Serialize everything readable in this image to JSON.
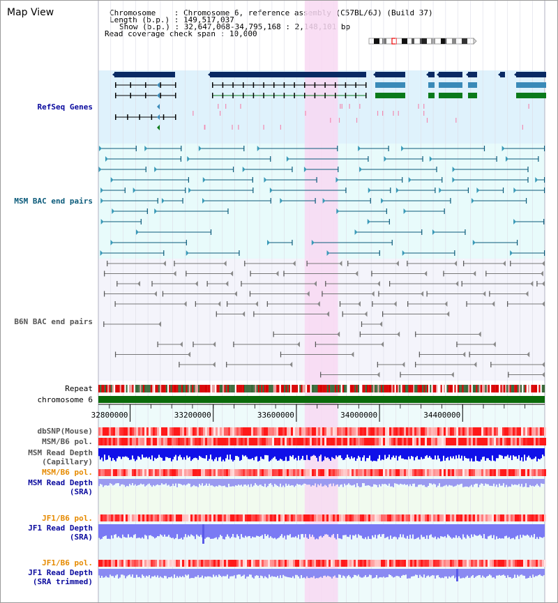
{
  "header": {
    "title": "Map View",
    "chromosome_label": "Chromosome",
    "chromosome_value": "Chromosome 6, reference assembly (C57BL/6J) (Build 37)",
    "length_label": "Length (b.p.)",
    "length_value": "149,517,037",
    "show_label": "Show (b.p.)",
    "show_value": "32,647,068-34,795,168 : 2,148,101 bp",
    "coverage_label": "Read coverage check span",
    "coverage_value": "10,000"
  },
  "view": {
    "start_bp": 32647068,
    "end_bp": 34795168,
    "highlight_start_bp": 33640000,
    "highlight_end_bp": 33800000
  },
  "axis": {
    "ticks": [
      32800000,
      33200000,
      33600000,
      34000000,
      34400000
    ],
    "tick_labels": [
      "32800000",
      "33200000",
      "33600000",
      "34000000",
      "34400000"
    ]
  },
  "tracks": {
    "refseq": {
      "label": "RefSeq Genes",
      "color": "#0a0a9e"
    },
    "msm_bac": {
      "label": "MSM BAC end pairs",
      "color": "#0a5a7a"
    },
    "b6n_bac": {
      "label": "B6N BAC end pairs",
      "color": "#555555"
    },
    "repeat": {
      "label": "Repeat"
    },
    "chromosome": {
      "label": "chromosome 6"
    },
    "dbsnp": {
      "label": "dbSNP(Mouse)"
    },
    "msm_pol_1": {
      "label": "MSM/B6 pol."
    },
    "msm_depth_cap": {
      "label_1": "MSM Read Depth",
      "label_2": "(Capillary)"
    },
    "msm_pol_2": {
      "label": "MSM/B6 pol."
    },
    "msm_depth_sra": {
      "label_1": "MSM Read Depth",
      "label_2": "(SRA)"
    },
    "jf1_pol_1": {
      "label": "JF1/B6 pol."
    },
    "jf1_depth_sra": {
      "label_1": "JF1 Read Depth",
      "label_2": "(SRA)"
    },
    "jf1_pol_2": {
      "label": "JF1/B6 pol."
    },
    "jf1_depth_trim": {
      "label_1": "JF1 Read Depth",
      "label_2": "(SRA trimmed)"
    }
  },
  "colors": {
    "refseq_bg": "#dff2fc",
    "msm_bg": "#e8fbfb",
    "b6n_bg": "#f4f4fb",
    "highlight": "#f8d8f2",
    "gene_dark": "#0a2a63",
    "gene_mid": "#3a8ab8",
    "gene_green": "#0a7a1a",
    "chromosome_green": "#0a6a0a",
    "label_blue": "#0a0a9e",
    "label_teal": "#0a5a7a",
    "label_orange": "#e68a00",
    "label_gray": "#555555"
  }
}
